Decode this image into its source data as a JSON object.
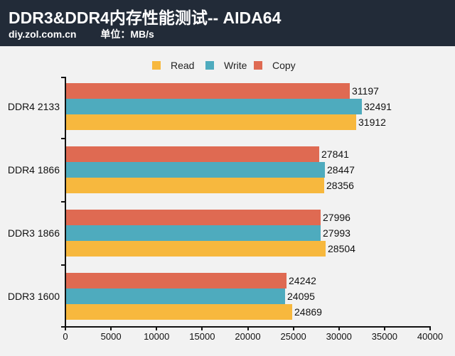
{
  "header": {
    "title": "DDR3&DDR4内存性能测试-- AIDA64",
    "site": "diy.zol.com.cn",
    "unit": "单位：MB/s"
  },
  "colors": {
    "header_bg": "#222b38",
    "read": "#f7b83e",
    "write": "#4eabbe",
    "copy": "#df6a52",
    "background": "#f2f2f2"
  },
  "legend": [
    {
      "name": "Read",
      "color": "#f7b83e"
    },
    {
      "name": "Write",
      "color": "#4eabbe"
    },
    {
      "name": "Copy",
      "color": "#df6a52"
    }
  ],
  "chart_data": {
    "type": "bar",
    "orientation": "horizontal",
    "title": "DDR3&DDR4内存性能测试-- AIDA64",
    "subtitle": "diy.zol.com.cn 单位：MB/s",
    "categories": [
      "DDR4 2133",
      "DDR4 1866",
      "DDR3 1866",
      "DDR3 1600"
    ],
    "series": [
      {
        "name": "Copy",
        "color": "#df6a52",
        "values": [
          31197,
          27841,
          27996,
          24242
        ]
      },
      {
        "name": "Write",
        "color": "#4eabbe",
        "values": [
          32491,
          28447,
          27993,
          24095
        ]
      },
      {
        "name": "Read",
        "color": "#f7b83e",
        "values": [
          31912,
          28356,
          28504,
          24869
        ]
      }
    ],
    "xlabel": "",
    "ylabel": "",
    "xlim": [
      0,
      40000
    ],
    "xticks": [
      0,
      5000,
      10000,
      15000,
      20000,
      25000,
      30000,
      35000,
      40000
    ],
    "grid": false,
    "legend_position": "top"
  }
}
